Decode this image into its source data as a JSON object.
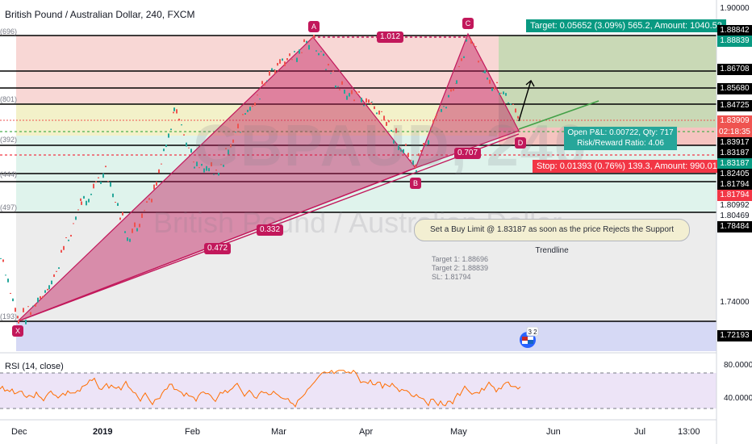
{
  "header": {
    "title": "British Pound / Australian Dollar, 240, FXCM"
  },
  "watermark": {
    "symbol": "GBPAUD, 240",
    "name": "British Pound / Australian Dollar"
  },
  "note": {
    "text": "Set a Buy Limit @ 1.83187 as soon as the price Rejects the Support Trendline"
  },
  "targets": {
    "t1": "Target 1: 1.88696",
    "t2": "Target 2: 1.88839",
    "sl": "SL: 1.81794"
  },
  "trade": {
    "target": "Target: 0.05652 (3.09%) 565.2, Amount: 1040.52",
    "stop": "Stop: 0.01393 (0.76%) 139.3, Amount: 990.01",
    "pnl_line1": "Open P&L: 0.00722, Qty: 717",
    "pnl_line2": "Risk/Reward Ratio: 4.06"
  },
  "pattern": {
    "points": {
      "x": "X",
      "a": "A",
      "b": "B",
      "c": "C",
      "d": "D"
    },
    "ratios": {
      "ac": "1.012",
      "bd": "0.707",
      "xb": "0.332",
      "xd": "0.472"
    }
  },
  "left_labels": {
    "l1": "(696)",
    "l2": "(801)",
    "l3": "(392)",
    "l4": "(444)",
    "l5": "(497)",
    "l6": "(193)"
  },
  "rsi": {
    "title": "RSI (14, close)",
    "levels": [
      "80.0000",
      "40.0000"
    ]
  },
  "icon": {
    "name": "calendar-flag-icon",
    "badge": "3 2"
  },
  "chart_data": {
    "type": "line",
    "ohlc_note": "approximate close series",
    "x": [
      "Dec",
      "2019",
      "Feb",
      "Mar",
      "Apr",
      "May",
      "Jun",
      "Jul",
      "13:00"
    ],
    "price_labels": [
      {
        "value": "1.90000",
        "type": "axis"
      },
      {
        "value": "1.88842",
        "type": "line"
      },
      {
        "value": "1.88839",
        "type": "target"
      },
      {
        "value": "1.86708",
        "type": "line"
      },
      {
        "value": "1.85680",
        "type": "line"
      },
      {
        "value": "1.84725",
        "type": "line"
      },
      {
        "value": "1.83909",
        "type": "last"
      },
      {
        "value": "02:18:35",
        "type": "countdown"
      },
      {
        "value": "1.83917",
        "type": "line"
      },
      {
        "value": "1.83187",
        "type": "line"
      },
      {
        "value": "1.83187",
        "type": "entry"
      },
      {
        "value": "1.82405",
        "type": "line"
      },
      {
        "value": "1.81794",
        "type": "line"
      },
      {
        "value": "1.81794",
        "type": "stop"
      },
      {
        "value": "1.80992",
        "type": "axis"
      },
      {
        "value": "1.80469",
        "type": "axis"
      },
      {
        "value": "1.78484",
        "type": "line"
      },
      {
        "value": "1.74000",
        "type": "axis"
      },
      {
        "value": "1.72193",
        "type": "line"
      }
    ],
    "levels": [
      1.88842,
      1.86708,
      1.8568,
      1.84725,
      1.83917,
      1.83187,
      1.82405,
      1.81794,
      1.78484,
      1.72193
    ],
    "harmonic": {
      "X": 1.72193,
      "A": 1.88842,
      "B": 1.82405,
      "C": 1.88842,
      "D": 1.83187
    },
    "rsi_levels": [
      80,
      40
    ],
    "colors": {
      "up": "#26a69a",
      "down": "#ef5350",
      "pattern": "#c2185b",
      "rsi": "#ff6d00"
    }
  }
}
